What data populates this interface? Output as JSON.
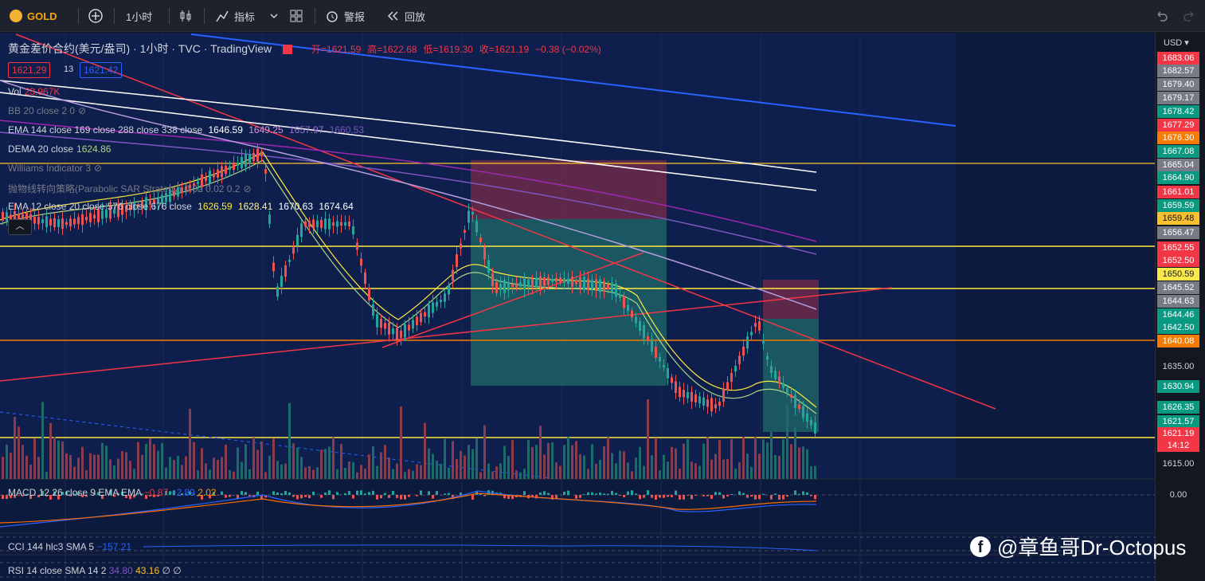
{
  "toolbar": {
    "symbol": "GOLD",
    "interval": "1小时",
    "indicators": "指标",
    "alerts": "警报",
    "replay": "回放"
  },
  "legend": {
    "title": "黄金差价合约(美元/盎司) · 1小时 · TVC · TradingView",
    "open_label": "开=1621.59",
    "high_label": "高=1622.68",
    "low_label": "低=1619.30",
    "close_label": "收=1621.19",
    "change": "−0.38 (−0.02%)",
    "bid": "1621.29",
    "spread": "13",
    "ask": "1621.42"
  },
  "indicators": [
    {
      "name": "Vol",
      "values": [
        "23.967K"
      ]
    },
    {
      "name": "BB 20 close 2 0",
      "values": []
    },
    {
      "name": "EMA 144 close 169 close 288 close 338 close",
      "values": [
        "1646.59",
        "1649.25",
        "1657.97",
        "1660.53"
      ]
    },
    {
      "name": "DEMA 20 close",
      "values": [
        "1624.86"
      ]
    },
    {
      "name": "Williams Indicator 3",
      "values": []
    },
    {
      "name": "抛物线转向策略(Parabolic SAR Strategy) 0.02 0.02 0.2",
      "values": []
    },
    {
      "name": "EMA 12 close 20 close 576 close 676 close",
      "values": [
        "1626.59",
        "1628.41",
        "1670.63",
        "1674.64"
      ]
    }
  ],
  "price_scale": {
    "currency": "USD",
    "labels": [
      {
        "text": "1683.06",
        "color": "#f23645"
      },
      {
        "text": "1682.57",
        "color": "#787b86"
      },
      {
        "text": "1679.40",
        "color": "#787b86"
      },
      {
        "text": "1679.17",
        "color": "#787b86"
      },
      {
        "text": "1678.42",
        "color": "#089981"
      },
      {
        "text": "1677.29",
        "color": "#f23645"
      },
      {
        "text": "1676.30",
        "color": "#f57c00"
      },
      {
        "text": "1667.08",
        "color": "#089981"
      },
      {
        "text": "1665.04",
        "color": "#787b86"
      },
      {
        "text": "1664.90",
        "color": "#089981"
      },
      {
        "text": "1661.01",
        "color": "#f23645"
      },
      {
        "text": "1659.59",
        "color": "#089981"
      },
      {
        "text": "1659.48",
        "color": "#fbc02d"
      },
      {
        "text": "1656.47",
        "color": "#787b86"
      },
      {
        "text": "1652.55",
        "color": "#f23645"
      },
      {
        "text": "1652.50",
        "color": "#f23645"
      },
      {
        "text": "1650.59",
        "color": "#fbe84a"
      },
      {
        "text": "1645.52",
        "color": "#787b86"
      },
      {
        "text": "1644.63",
        "color": "#787b86"
      },
      {
        "text": "1644.46",
        "color": "#089981"
      },
      {
        "text": "1642.50",
        "color": "#089981"
      },
      {
        "text": "1640.08",
        "color": "#f57c00"
      },
      {
        "text": "1635.00",
        "color": "none"
      },
      {
        "text": "1630.94",
        "color": "#089981"
      },
      {
        "text": "1626.35",
        "color": "#089981"
      },
      {
        "text": "1621.57",
        "color": "#089981"
      },
      {
        "text": "1621.19",
        "color": "#f23645"
      },
      {
        "text": "14:12",
        "color": "#f23645"
      },
      {
        "text": "1615.00",
        "color": "none"
      }
    ],
    "macd_zero": "0.00"
  },
  "panes": {
    "macd": {
      "label": "MACD 12 26 close 9 EMA EMA",
      "values": [
        "−0.87",
        "−2.89",
        "2.02"
      ]
    },
    "cci": {
      "label": "CCI 144 hlc3 SMA 5",
      "value": "−157.21"
    },
    "rsi": {
      "label": "RSI 14 close SMA 14 2",
      "values": [
        "34.80",
        "43.16",
        "∅",
        "∅"
      ]
    }
  },
  "watermark": "@章鱼哥Dr-Octopus"
}
